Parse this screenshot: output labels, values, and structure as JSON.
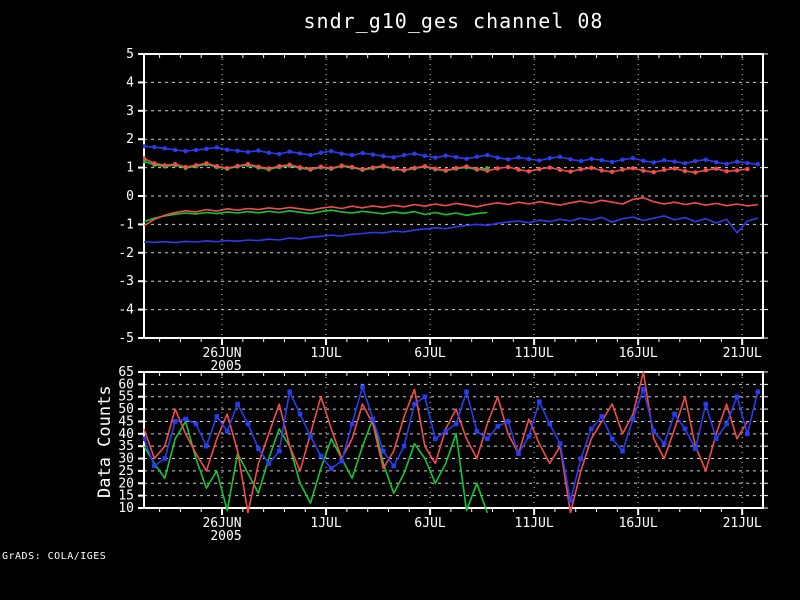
{
  "watermark": "GrADS: COLA/IGES",
  "colors": {
    "background": "#000000",
    "frame": "#ffffff",
    "grid": "#d0d0d0",
    "text": "#ffffff",
    "blue": "#2a3cf0",
    "red": "#f44b4b",
    "green": "#12c832"
  },
  "chart_data": [
    {
      "type": "line",
      "title": "sndr_g10_ges channel 08",
      "xlabel": "",
      "ylabel": "",
      "ylim": [
        -5,
        5
      ],
      "yticks": [
        -5,
        -4,
        -3,
        -2,
        -1,
        0,
        1,
        2,
        3,
        4,
        5
      ],
      "x_domain_days": [
        0,
        29.75
      ],
      "xticks": [
        {
          "day": 3.75,
          "label": "26JUN",
          "year": "2005"
        },
        {
          "day": 8.75,
          "label": "1JUL"
        },
        {
          "day": 13.75,
          "label": "6JUL"
        },
        {
          "day": 18.75,
          "label": "11JUL"
        },
        {
          "day": 23.75,
          "label": "16JUL"
        },
        {
          "day": 28.75,
          "label": "21JUL"
        }
      ],
      "minor_tick_start": 0.75,
      "minor_tick_step": 1,
      "grid": "dashed",
      "legend": "none",
      "series": [
        {
          "name": "lower-green",
          "color_key": "green",
          "marker": null,
          "start_day": 0,
          "step_days": 0.5,
          "values": [
            -0.9,
            -0.78,
            -0.7,
            -0.64,
            -0.6,
            -0.63,
            -0.58,
            -0.62,
            -0.56,
            -0.6,
            -0.55,
            -0.59,
            -0.54,
            -0.58,
            -0.52,
            -0.57,
            -0.62,
            -0.55,
            -0.5,
            -0.56,
            -0.6,
            -0.54,
            -0.58,
            -0.63,
            -0.56,
            -0.61,
            -0.55,
            -0.65,
            -0.58,
            -0.66,
            -0.6,
            -0.68,
            -0.62,
            -0.58
          ]
        },
        {
          "name": "lower-red",
          "color_key": "red",
          "marker": null,
          "start_day": 0,
          "step_days": 0.5,
          "values": [
            -1.05,
            -0.82,
            -0.68,
            -0.58,
            -0.52,
            -0.56,
            -0.48,
            -0.53,
            -0.45,
            -0.5,
            -0.44,
            -0.48,
            -0.42,
            -0.46,
            -0.4,
            -0.45,
            -0.5,
            -0.43,
            -0.38,
            -0.44,
            -0.36,
            -0.42,
            -0.35,
            -0.4,
            -0.33,
            -0.38,
            -0.3,
            -0.36,
            -0.28,
            -0.34,
            -0.26,
            -0.32,
            -0.38,
            -0.3,
            -0.24,
            -0.3,
            -0.22,
            -0.28,
            -0.2,
            -0.26,
            -0.32,
            -0.24,
            -0.18,
            -0.25,
            -0.15,
            -0.22,
            -0.28,
            -0.12,
            -0.06,
            -0.2,
            -0.28,
            -0.22,
            -0.3,
            -0.24,
            -0.32,
            -0.26,
            -0.34,
            -0.28,
            -0.35,
            -0.3
          ]
        },
        {
          "name": "lower-blue",
          "color_key": "blue",
          "marker": null,
          "start_day": 0,
          "step_days": 0.5,
          "values": [
            -1.62,
            -1.63,
            -1.61,
            -1.64,
            -1.6,
            -1.62,
            -1.58,
            -1.61,
            -1.57,
            -1.59,
            -1.55,
            -1.57,
            -1.52,
            -1.55,
            -1.48,
            -1.51,
            -1.45,
            -1.42,
            -1.38,
            -1.41,
            -1.35,
            -1.32,
            -1.28,
            -1.3,
            -1.24,
            -1.26,
            -1.2,
            -1.16,
            -1.12,
            -1.15,
            -1.08,
            -1.04,
            -1.0,
            -1.03,
            -0.96,
            -0.92,
            -0.88,
            -0.94,
            -0.85,
            -0.9,
            -0.82,
            -0.88,
            -0.78,
            -0.85,
            -0.75,
            -0.92,
            -0.8,
            -0.74,
            -0.86,
            -0.78,
            -0.7,
            -0.84,
            -0.76,
            -0.9,
            -0.8,
            -0.95,
            -0.82,
            -1.3,
            -0.88,
            -0.78
          ]
        },
        {
          "name": "upper-green",
          "color_key": "green",
          "marker": "dot",
          "start_day": 0,
          "step_days": 0.5,
          "values": [
            1.22,
            1.1,
            1.04,
            1.09,
            0.99,
            1.05,
            1.12,
            1.02,
            0.96,
            1.04,
            1.09,
            1.0,
            0.94,
            1.02,
            1.07,
            0.98,
            0.93,
            1.01,
            0.96,
            1.05,
            1.0,
            0.92,
            0.98,
            1.04,
            0.95,
            0.9,
            0.97,
            1.03,
            0.94,
            0.89,
            0.96,
            1.01,
            0.93,
            0.98
          ]
        },
        {
          "name": "upper-red",
          "color_key": "red",
          "marker": "dot",
          "start_day": 0,
          "step_days": 0.5,
          "values": [
            1.32,
            1.15,
            1.08,
            1.12,
            1.02,
            1.08,
            1.15,
            1.05,
            0.98,
            1.06,
            1.12,
            1.03,
            0.97,
            1.05,
            1.1,
            1.01,
            0.95,
            1.03,
            0.98,
            1.07,
            1.02,
            0.94,
            1.0,
            1.06,
            0.97,
            0.91,
            0.99,
            1.05,
            0.96,
            0.9,
            0.98,
            1.04,
            0.95,
            0.89,
            0.97,
            1.02,
            0.93,
            0.87,
            0.95,
            1.0,
            0.92,
            0.86,
            0.94,
            0.99,
            0.9,
            0.85,
            0.93,
            0.98,
            0.89,
            0.84,
            0.92,
            0.97,
            0.88,
            0.83,
            0.91,
            0.96,
            0.87,
            0.9,
            0.95
          ]
        },
        {
          "name": "upper-blue",
          "color_key": "blue",
          "marker": "dot",
          "start_day": 0,
          "step_days": 0.5,
          "values": [
            1.75,
            1.72,
            1.68,
            1.62,
            1.58,
            1.62,
            1.66,
            1.71,
            1.63,
            1.59,
            1.55,
            1.6,
            1.52,
            1.48,
            1.56,
            1.5,
            1.44,
            1.52,
            1.58,
            1.49,
            1.44,
            1.51,
            1.46,
            1.4,
            1.36,
            1.44,
            1.49,
            1.41,
            1.35,
            1.42,
            1.37,
            1.31,
            1.38,
            1.44,
            1.35,
            1.29,
            1.36,
            1.3,
            1.25,
            1.33,
            1.38,
            1.29,
            1.23,
            1.31,
            1.26,
            1.2,
            1.28,
            1.33,
            1.24,
            1.18,
            1.26,
            1.21,
            1.15,
            1.23,
            1.28,
            1.19,
            1.13,
            1.21,
            1.16,
            1.12
          ]
        }
      ]
    },
    {
      "type": "line",
      "title": "",
      "xlabel": "",
      "ylabel": "Data Counts",
      "ylim": [
        10,
        65
      ],
      "yticks": [
        10,
        15,
        20,
        25,
        30,
        35,
        40,
        45,
        50,
        55,
        60,
        65
      ],
      "x_domain_days": [
        0,
        29.75
      ],
      "xticks": [
        {
          "day": 3.75,
          "label": "26JUN",
          "year": "2005"
        },
        {
          "day": 8.75,
          "label": "1JUL"
        },
        {
          "day": 13.75,
          "label": "6JUL"
        },
        {
          "day": 18.75,
          "label": "11JUL"
        },
        {
          "day": 23.75,
          "label": "16JUL"
        },
        {
          "day": 28.75,
          "label": "21JUL"
        }
      ],
      "minor_tick_start": 0.75,
      "minor_tick_step": 1,
      "grid": "dashed",
      "legend": "none",
      "series": [
        {
          "name": "counts-green",
          "color_key": "green",
          "marker": null,
          "start_day": 0,
          "step_days": 0.5,
          "values": [
            35,
            28,
            22,
            38,
            45,
            30,
            18,
            25,
            9,
            32,
            24,
            16,
            30,
            42,
            35,
            20,
            12,
            26,
            38,
            30,
            22,
            35,
            46,
            28,
            16,
            24,
            36,
            30,
            20,
            28,
            40,
            9,
            20,
            8
          ]
        },
        {
          "name": "counts-red",
          "color_key": "red",
          "marker": null,
          "start_day": 0,
          "step_days": 0.5,
          "values": [
            42,
            30,
            35,
            50,
            40,
            32,
            25,
            38,
            48,
            33,
            8,
            28,
            40,
            52,
            35,
            25,
            40,
            55,
            42,
            30,
            38,
            52,
            44,
            26,
            33,
            47,
            58,
            35,
            28,
            42,
            50,
            38,
            30,
            44,
            55,
            40,
            32,
            46,
            36,
            28,
            35,
            8,
            25,
            38,
            45,
            52,
            40,
            48,
            65,
            38,
            30,
            42,
            55,
            35,
            25,
            40,
            52,
            38,
            45
          ]
        },
        {
          "name": "counts-blue",
          "color_key": "blue",
          "marker": "square",
          "start_day": 0,
          "step_days": 0.5,
          "values": [
            38,
            27,
            30,
            45,
            46,
            44,
            35,
            47,
            41,
            52,
            44,
            34,
            28,
            33,
            57,
            48,
            39,
            31,
            26,
            29,
            44,
            59,
            46,
            33,
            27,
            35,
            52,
            55,
            38,
            41,
            44,
            57,
            41,
            38,
            43,
            45,
            32,
            39,
            53,
            44,
            36,
            13,
            30,
            42,
            47,
            38,
            33,
            46,
            58,
            41,
            36,
            48,
            42,
            34,
            52,
            38,
            44,
            55,
            40,
            57
          ]
        }
      ]
    }
  ]
}
